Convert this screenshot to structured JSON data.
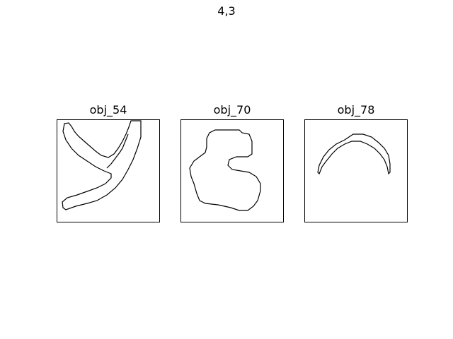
{
  "figure": {
    "title": "4,3"
  },
  "panels": [
    {
      "label": "obj_54"
    },
    {
      "label": "obj_70"
    },
    {
      "label": "obj_78"
    }
  ]
}
